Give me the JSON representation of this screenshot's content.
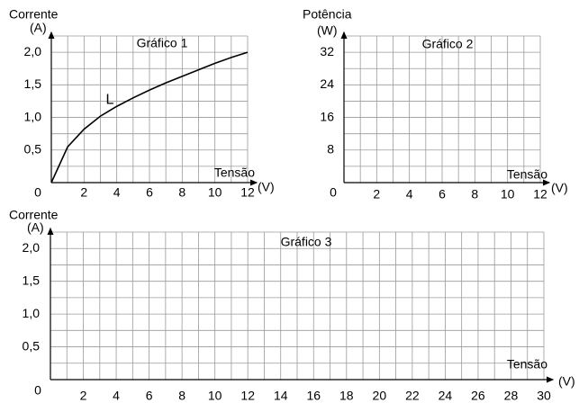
{
  "chart_data": [
    {
      "type": "line",
      "title": "Gráfico 1",
      "ylabel": "Corrente",
      "yunit": "(A)",
      "xlabel": "Tensão",
      "xunit": "(V)",
      "x": [
        0,
        1,
        2,
        3,
        4,
        5,
        6,
        7,
        8,
        9,
        10,
        11,
        12
      ],
      "series": [
        {
          "name": "L",
          "color": "#000000",
          "values": [
            0,
            0.55,
            0.82,
            1.02,
            1.17,
            1.3,
            1.42,
            1.53,
            1.63,
            1.73,
            1.83,
            1.92,
            2.0
          ]
        }
      ],
      "xlim": [
        0,
        12
      ],
      "ylim": [
        0,
        2.25
      ],
      "xticks": [
        0,
        2,
        4,
        6,
        8,
        10,
        12
      ],
      "yticks": [
        {
          "value": 0.5,
          "label": "0,5"
        },
        {
          "value": 1,
          "label": "1,0"
        },
        {
          "value": 1.5,
          "label": "1,5"
        },
        {
          "value": 2,
          "label": "2,0"
        }
      ],
      "grid": true,
      "grid_subdivisions": 2
    },
    {
      "type": "line",
      "title": "Gráfico 2",
      "ylabel": "Potência",
      "yunit": "(W)",
      "xlabel": "Tensão",
      "xunit": "(V)",
      "xlim": [
        0,
        12
      ],
      "ylim": [
        0,
        36
      ],
      "xticks": [
        0,
        2,
        4,
        6,
        8,
        10,
        12
      ],
      "yticks": [
        8,
        16,
        24,
        32
      ],
      "grid": true,
      "grid_subdivisions": 2
    },
    {
      "type": "line",
      "title": "Gráfico 3",
      "ylabel": "Corrente",
      "yunit": "(A)",
      "xlabel": "Tensão",
      "xunit": "(V)",
      "xlim": [
        0,
        30
      ],
      "ylim": [
        0,
        2.25
      ],
      "xticks": [
        0,
        2,
        4,
        6,
        8,
        10,
        12,
        14,
        16,
        18,
        20,
        22,
        24,
        26,
        28,
        30
      ],
      "yticks": [
        {
          "value": 0.5,
          "label": "0,5"
        },
        {
          "value": 1,
          "label": "1,0"
        },
        {
          "value": 1.5,
          "label": "1,5"
        },
        {
          "value": 2,
          "label": "2,0"
        }
      ],
      "grid": true,
      "grid_subdivisions": 2
    }
  ]
}
